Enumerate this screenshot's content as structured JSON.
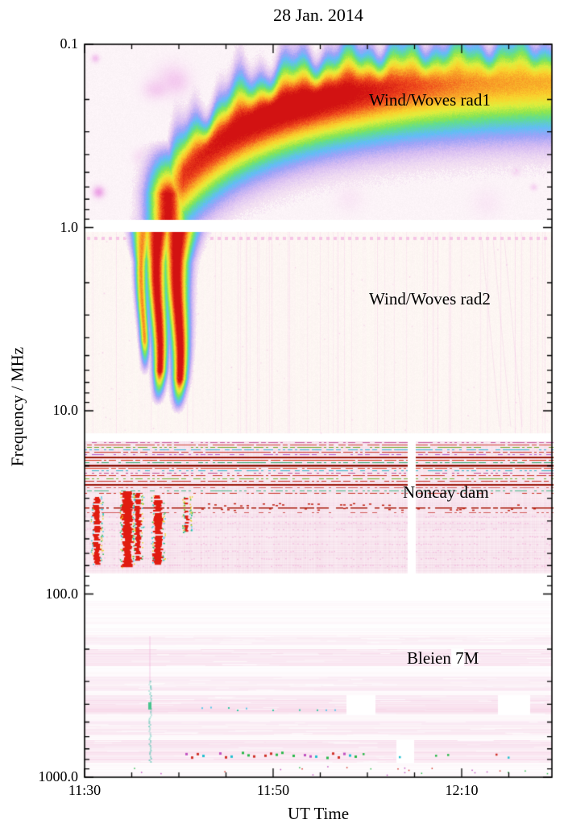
{
  "title": "28 Jan. 2014",
  "axes": {
    "x_label": "UT Time",
    "y_label": "Frequency / MHz",
    "x_ticks": [
      "11:30",
      "11:50",
      "12:10"
    ],
    "y_ticks": [
      "0.1",
      "1.0",
      "10.0",
      "100.0",
      "1000.0"
    ]
  },
  "chart_data": {
    "type": "heatmap",
    "subtype": "dynamic radio spectrogram, 4 stacked instrument panels",
    "title": "28 Jan. 2014",
    "xlabel": "UT Time",
    "ylabel": "Frequency / MHz",
    "x_range": [
      "11:30",
      "~12:20"
    ],
    "x_tick_labels": [
      "11:30",
      "11:50",
      "12:10"
    ],
    "y_scale": "logarithmic, inverted (0.1 MHz at top to 1000.0 MHz at bottom)",
    "y_tick_labels": [
      "0.1",
      "1.0",
      "10.0",
      "100.0",
      "1000.0"
    ],
    "colormap": "rainbow intensity: red = strongest, then orange/yellow/green/cyan/blue/violet/pink; pale pink/white = background",
    "panels": [
      {
        "instrument": "Wind/Woves rad1",
        "freq_range_mhz": [
          0.1,
          1.0
        ],
        "features": [
          "broad type III radio burst drifting up from ~1 MHz starting ~11:37 UT",
          "flattens near 0.15-0.3 MHz and persists to the right edge (~12:20 UT)",
          "intense red core roughly 11:44-12:00 UT around 0.2-0.5 MHz",
          "wavy scalloped upper envelope in green/cyan/violet over pale pink background"
        ]
      },
      {
        "instrument": "Wind/Woves rad2",
        "freq_range_mhz": [
          1.0,
          14
        ],
        "features": [
          "two-three intense vertical type III burst lanes ~11:36-11:41 UT drifting from 1 MHz down to ~10 MHz",
          "red cores with green/cyan fringes, fading below ~8 MHz",
          "sparse faint pink vertical interference lines and a dotted pink row near 1.1 MHz"
        ]
      },
      {
        "instrument": "Noncay dam",
        "freq_range_mhz": [
          15,
          80
        ],
        "features": [
          "dense horizontal RFI lines (dark red, red, green, cyan, magenta) in upper third",
          "three strong red vertical burst columns ~11:31-11:39 UT in lower two-thirds",
          "scattered red dashes near mid-panel after ~11:42 UT",
          "narrow white data-gap column near ~12:04 UT"
        ]
      },
      {
        "instrument": "Bleien 7M",
        "freq_range_mhz": [
          100,
          1000
        ],
        "features": [
          "faint pink horizontal instrument bands with white gaps",
          "weak cyan/green vertical feature near ~11:37 UT",
          "row of green/cyan/red dots in the lowest band ~11:41-11:58 UT"
        ]
      }
    ]
  }
}
